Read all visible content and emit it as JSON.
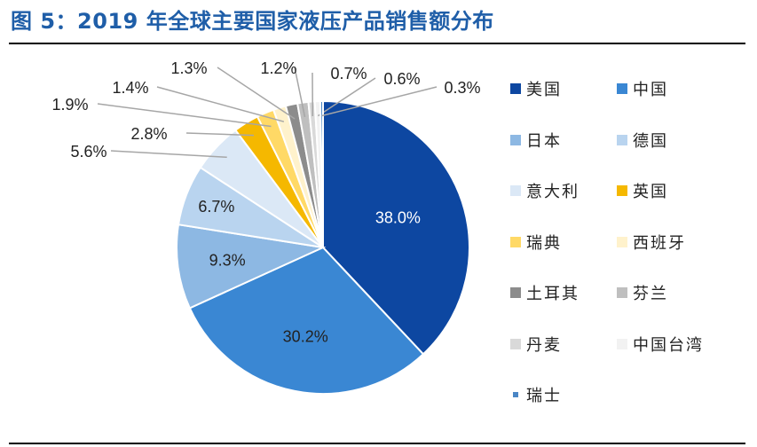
{
  "title": "图 5：2019 年全球主要国家液压产品销售额分布",
  "chart_data": {
    "type": "pie",
    "categories": [
      "美国",
      "中国",
      "日本",
      "德国",
      "意大利",
      "英国",
      "瑞典",
      "西班牙",
      "土耳其",
      "芬兰",
      "丹麦",
      "中国台湾",
      "瑞士"
    ],
    "values": [
      38.0,
      30.2,
      9.3,
      6.7,
      5.6,
      2.8,
      1.9,
      1.4,
      1.3,
      1.2,
      0.7,
      0.6,
      0.3
    ],
    "labels": [
      "38.0%",
      "30.2%",
      "9.3%",
      "6.7%",
      "5.6%",
      "2.8%",
      "1.9%",
      "1.4%",
      "1.3%",
      "1.2%",
      "0.7%",
      "0.6%",
      "0.3%"
    ],
    "colors": [
      "#0d47a1",
      "#3a87d3",
      "#8db8e3",
      "#b9d4ef",
      "#dbe8f6",
      "#f5b800",
      "#ffd966",
      "#fff2cc",
      "#8c8c8c",
      "#bfbfbf",
      "#d9d9d9",
      "#f2f2f2",
      "#4a86c5"
    ],
    "start_angle_deg": 0,
    "direction": "clockwise",
    "legend_position": "right",
    "legend_columns": 2
  }
}
